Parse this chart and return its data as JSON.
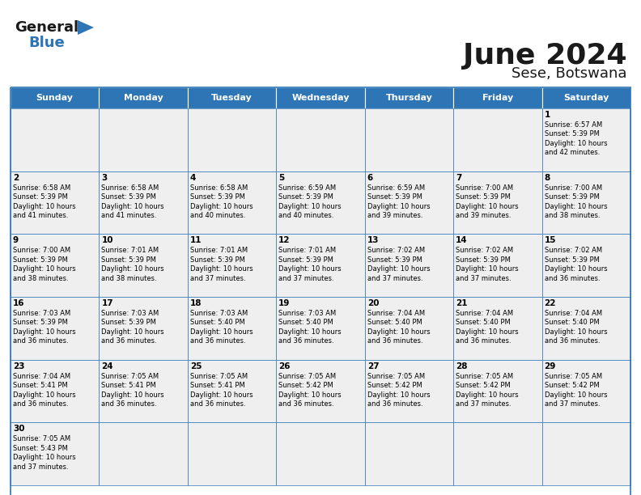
{
  "title": "June 2024",
  "subtitle": "Sese, Botswana",
  "days_of_week": [
    "Sunday",
    "Monday",
    "Tuesday",
    "Wednesday",
    "Thursday",
    "Friday",
    "Saturday"
  ],
  "header_bg": "#2E75B6",
  "header_text": "#FFFFFF",
  "cell_bg": "#EFEFEF",
  "border_color": "#2E75B6",
  "text_color": "#000000",
  "logo_black": "#1a1a1a",
  "logo_blue": "#2E75B6",
  "calendar_data": [
    [
      {
        "day": "",
        "info": ""
      },
      {
        "day": "",
        "info": ""
      },
      {
        "day": "",
        "info": ""
      },
      {
        "day": "",
        "info": ""
      },
      {
        "day": "",
        "info": ""
      },
      {
        "day": "",
        "info": ""
      },
      {
        "day": "1",
        "info": "Sunrise: 6:57 AM\nSunset: 5:39 PM\nDaylight: 10 hours\nand 42 minutes."
      }
    ],
    [
      {
        "day": "2",
        "info": "Sunrise: 6:58 AM\nSunset: 5:39 PM\nDaylight: 10 hours\nand 41 minutes."
      },
      {
        "day": "3",
        "info": "Sunrise: 6:58 AM\nSunset: 5:39 PM\nDaylight: 10 hours\nand 41 minutes."
      },
      {
        "day": "4",
        "info": "Sunrise: 6:58 AM\nSunset: 5:39 PM\nDaylight: 10 hours\nand 40 minutes."
      },
      {
        "day": "5",
        "info": "Sunrise: 6:59 AM\nSunset: 5:39 PM\nDaylight: 10 hours\nand 40 minutes."
      },
      {
        "day": "6",
        "info": "Sunrise: 6:59 AM\nSunset: 5:39 PM\nDaylight: 10 hours\nand 39 minutes."
      },
      {
        "day": "7",
        "info": "Sunrise: 7:00 AM\nSunset: 5:39 PM\nDaylight: 10 hours\nand 39 minutes."
      },
      {
        "day": "8",
        "info": "Sunrise: 7:00 AM\nSunset: 5:39 PM\nDaylight: 10 hours\nand 38 minutes."
      }
    ],
    [
      {
        "day": "9",
        "info": "Sunrise: 7:00 AM\nSunset: 5:39 PM\nDaylight: 10 hours\nand 38 minutes."
      },
      {
        "day": "10",
        "info": "Sunrise: 7:01 AM\nSunset: 5:39 PM\nDaylight: 10 hours\nand 38 minutes."
      },
      {
        "day": "11",
        "info": "Sunrise: 7:01 AM\nSunset: 5:39 PM\nDaylight: 10 hours\nand 37 minutes."
      },
      {
        "day": "12",
        "info": "Sunrise: 7:01 AM\nSunset: 5:39 PM\nDaylight: 10 hours\nand 37 minutes."
      },
      {
        "day": "13",
        "info": "Sunrise: 7:02 AM\nSunset: 5:39 PM\nDaylight: 10 hours\nand 37 minutes."
      },
      {
        "day": "14",
        "info": "Sunrise: 7:02 AM\nSunset: 5:39 PM\nDaylight: 10 hours\nand 37 minutes."
      },
      {
        "day": "15",
        "info": "Sunrise: 7:02 AM\nSunset: 5:39 PM\nDaylight: 10 hours\nand 36 minutes."
      }
    ],
    [
      {
        "day": "16",
        "info": "Sunrise: 7:03 AM\nSunset: 5:39 PM\nDaylight: 10 hours\nand 36 minutes."
      },
      {
        "day": "17",
        "info": "Sunrise: 7:03 AM\nSunset: 5:39 PM\nDaylight: 10 hours\nand 36 minutes."
      },
      {
        "day": "18",
        "info": "Sunrise: 7:03 AM\nSunset: 5:40 PM\nDaylight: 10 hours\nand 36 minutes."
      },
      {
        "day": "19",
        "info": "Sunrise: 7:03 AM\nSunset: 5:40 PM\nDaylight: 10 hours\nand 36 minutes."
      },
      {
        "day": "20",
        "info": "Sunrise: 7:04 AM\nSunset: 5:40 PM\nDaylight: 10 hours\nand 36 minutes."
      },
      {
        "day": "21",
        "info": "Sunrise: 7:04 AM\nSunset: 5:40 PM\nDaylight: 10 hours\nand 36 minutes."
      },
      {
        "day": "22",
        "info": "Sunrise: 7:04 AM\nSunset: 5:40 PM\nDaylight: 10 hours\nand 36 minutes."
      }
    ],
    [
      {
        "day": "23",
        "info": "Sunrise: 7:04 AM\nSunset: 5:41 PM\nDaylight: 10 hours\nand 36 minutes."
      },
      {
        "day": "24",
        "info": "Sunrise: 7:05 AM\nSunset: 5:41 PM\nDaylight: 10 hours\nand 36 minutes."
      },
      {
        "day": "25",
        "info": "Sunrise: 7:05 AM\nSunset: 5:41 PM\nDaylight: 10 hours\nand 36 minutes."
      },
      {
        "day": "26",
        "info": "Sunrise: 7:05 AM\nSunset: 5:42 PM\nDaylight: 10 hours\nand 36 minutes."
      },
      {
        "day": "27",
        "info": "Sunrise: 7:05 AM\nSunset: 5:42 PM\nDaylight: 10 hours\nand 36 minutes."
      },
      {
        "day": "28",
        "info": "Sunrise: 7:05 AM\nSunset: 5:42 PM\nDaylight: 10 hours\nand 37 minutes."
      },
      {
        "day": "29",
        "info": "Sunrise: 7:05 AM\nSunset: 5:42 PM\nDaylight: 10 hours\nand 37 minutes."
      }
    ],
    [
      {
        "day": "30",
        "info": "Sunrise: 7:05 AM\nSunset: 5:43 PM\nDaylight: 10 hours\nand 37 minutes."
      },
      {
        "day": "",
        "info": ""
      },
      {
        "day": "",
        "info": ""
      },
      {
        "day": "",
        "info": ""
      },
      {
        "day": "",
        "info": ""
      },
      {
        "day": "",
        "info": ""
      },
      {
        "day": "",
        "info": ""
      }
    ]
  ]
}
